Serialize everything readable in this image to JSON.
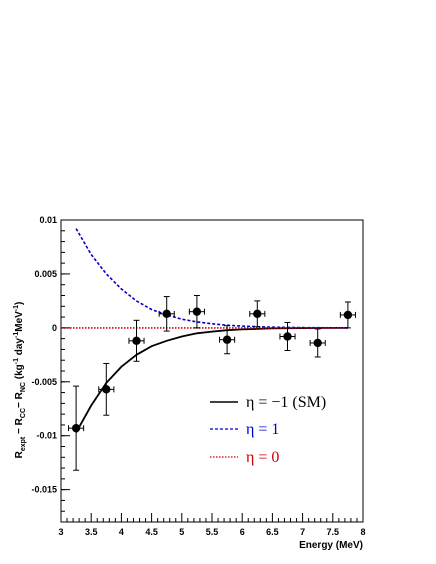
{
  "chart_data": {
    "type": "scatter",
    "xlabel": "Energy (MeV)",
    "ylabel": "R_expt - R_CC - R_NC (kg^-1 day^-1 MeV^-1)",
    "xlim": [
      3,
      8
    ],
    "ylim": [
      -0.018,
      0.01
    ],
    "x_ticks": [
      "3",
      "3.5",
      "4",
      "4.5",
      "5",
      "5.5",
      "6",
      "6.5",
      "7",
      "7.5",
      "8"
    ],
    "y_ticks": [
      "0.01",
      "0.005",
      "0",
      "-0.005",
      "-0.01",
      "-0.015"
    ],
    "grid": false,
    "legend_position": "lower-right",
    "data_points": [
      {
        "x": 3.25,
        "y": -0.0093,
        "xerr": 0.125,
        "yerr": 0.0039
      },
      {
        "x": 3.75,
        "y": -0.0057,
        "xerr": 0.125,
        "yerr": 0.0024
      },
      {
        "x": 4.25,
        "y": -0.0012,
        "xerr": 0.125,
        "yerr": 0.0019
      },
      {
        "x": 4.75,
        "y": 0.0013,
        "xerr": 0.125,
        "yerr": 0.0016
      },
      {
        "x": 5.25,
        "y": 0.0015,
        "xerr": 0.125,
        "yerr": 0.0015
      },
      {
        "x": 5.75,
        "y": -0.0011,
        "xerr": 0.125,
        "yerr": 0.0013
      },
      {
        "x": 6.25,
        "y": 0.0013,
        "xerr": 0.125,
        "yerr": 0.0012
      },
      {
        "x": 6.75,
        "y": -0.0008,
        "xerr": 0.125,
        "yerr": 0.0013
      },
      {
        "x": 7.25,
        "y": -0.0014,
        "xerr": 0.125,
        "yerr": 0.0013
      },
      {
        "x": 7.75,
        "y": 0.0012,
        "xerr": 0.125,
        "yerr": 0.0012
      }
    ],
    "series": [
      {
        "name": "η = −1 (SM)",
        "style": "solid",
        "color": "#000000",
        "x": [
          3.25,
          3.5,
          3.75,
          4.0,
          4.25,
          4.5,
          4.75,
          5.0,
          5.25,
          5.5,
          5.75,
          6.0,
          6.5,
          7.0,
          7.5,
          7.75
        ],
        "y": [
          -0.0097,
          -0.0072,
          -0.0051,
          -0.0036,
          -0.0025,
          -0.0017,
          -0.0012,
          -0.0008,
          -0.0005,
          -0.00035,
          -0.00022,
          -0.00014,
          -5e-05,
          -2e-05,
          -5e-06,
          0
        ]
      },
      {
        "name": "η = 1",
        "style": "dashed",
        "color": "#0000cc",
        "x": [
          3.25,
          3.5,
          3.75,
          4.0,
          4.25,
          4.5,
          4.75,
          5.0,
          5.25,
          5.5,
          5.75,
          6.0,
          6.5,
          7.0,
          7.5,
          7.75
        ],
        "y": [
          0.0092,
          0.0068,
          0.005,
          0.0036,
          0.0025,
          0.0017,
          0.0012,
          0.0008,
          0.00055,
          0.00038,
          0.00025,
          0.00016,
          6e-05,
          2e-05,
          5e-06,
          0
        ]
      },
      {
        "name": "η = 0",
        "style": "dotted",
        "color": "#cc0000",
        "x": [
          3,
          7.75
        ],
        "y": [
          0,
          0
        ]
      }
    ]
  }
}
